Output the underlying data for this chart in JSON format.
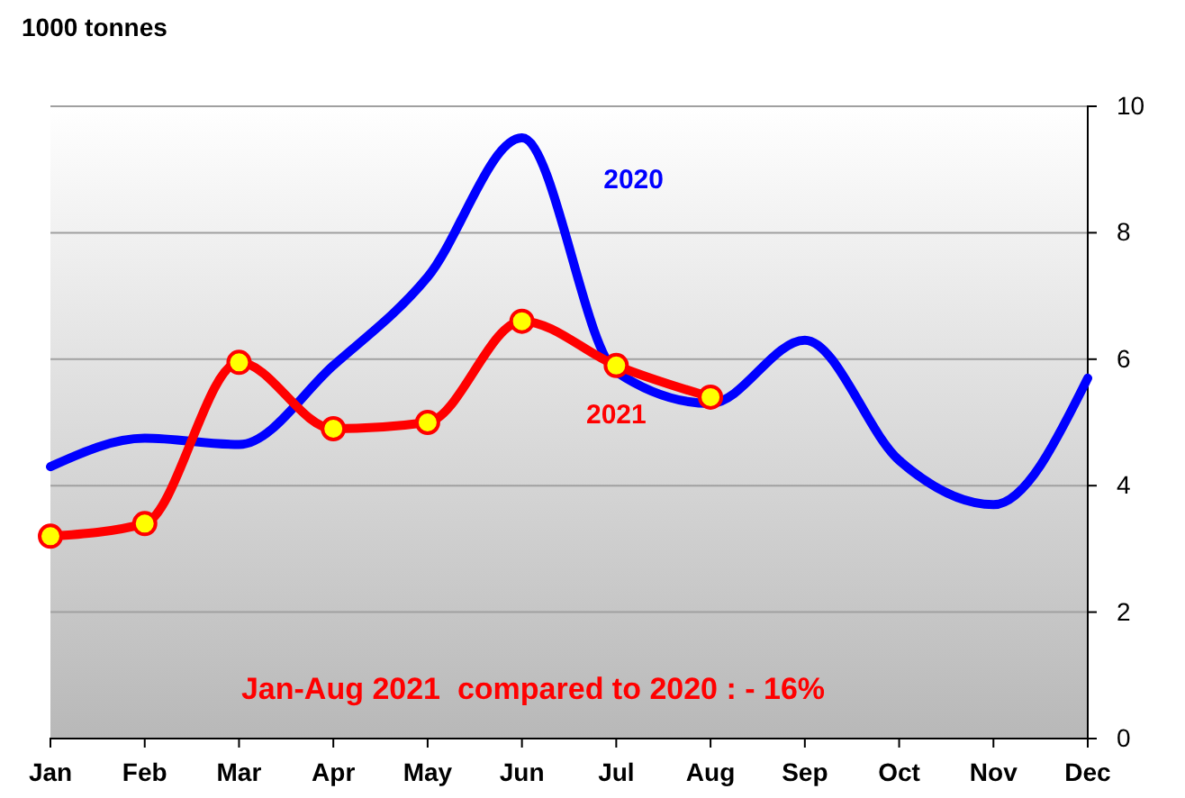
{
  "chart_data": {
    "type": "line",
    "ylabel": "1000 tonnes",
    "categories": [
      "Jan",
      "Feb",
      "Mar",
      "Apr",
      "May",
      "Jun",
      "Jul",
      "Aug",
      "Sep",
      "Oct",
      "Nov",
      "Dec"
    ],
    "series": [
      {
        "name": "2020",
        "color": "#0000ff",
        "marker": "none",
        "values": [
          4.3,
          4.75,
          4.65,
          5.9,
          7.3,
          9.5,
          5.8,
          5.3,
          6.3,
          4.4,
          3.7,
          5.7
        ]
      },
      {
        "name": "2021",
        "color": "#ff0000",
        "marker": "circle",
        "values": [
          3.2,
          3.4,
          5.95,
          4.9,
          5.0,
          6.6,
          5.9,
          5.4,
          null,
          null,
          null,
          null
        ]
      }
    ],
    "ylim": [
      0,
      10
    ],
    "yticks": [
      0,
      2,
      4,
      6,
      8,
      10
    ],
    "grid": "y",
    "annotations": [
      "Jan-Aug 2021  compared to 2020 : - 16%"
    ]
  }
}
